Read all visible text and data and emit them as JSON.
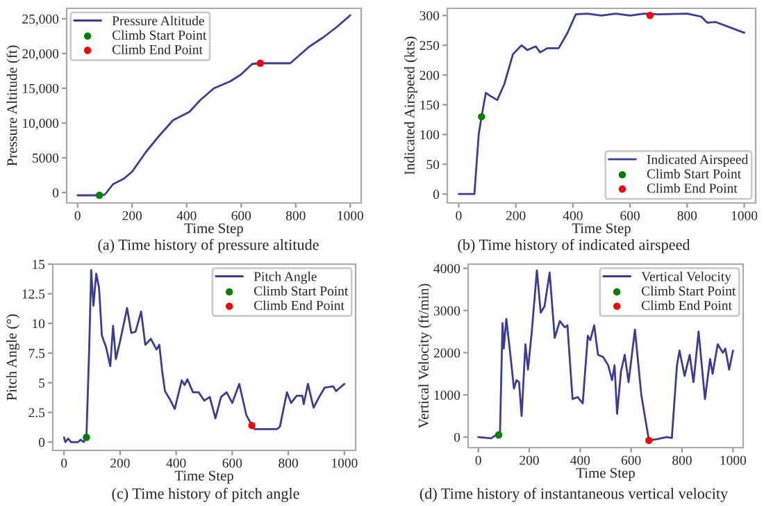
{
  "chart_data": [
    {
      "type": "line",
      "xlabel": "Time Step",
      "ylabel": "Pressure Altitude (ft)",
      "annotations": [
        "(a) Time history of pressure altitude"
      ],
      "xlim": [
        -40,
        1040
      ],
      "xticks": [
        0,
        200,
        400,
        600,
        800,
        1000
      ],
      "ylim": [
        -1500,
        26500
      ],
      "yticks": [
        {
          "value": 0,
          "label": "0"
        },
        {
          "value": 5000,
          "label": "5000"
        },
        {
          "value": 10000,
          "label": "10,000"
        },
        {
          "value": 15000,
          "label": "15,000"
        },
        {
          "value": 20000,
          "label": "20,000"
        },
        {
          "value": 25000,
          "label": "25,000"
        }
      ],
      "grid": false,
      "legend": "top left",
      "series": [
        {
          "name": "Pressure Altitude",
          "color": "#3b3b98",
          "marker": "none",
          "x": [
            0,
            80,
            100,
            130,
            170,
            200,
            250,
            300,
            350,
            380,
            410,
            450,
            500,
            560,
            600,
            640,
            670,
            780,
            850,
            900,
            950,
            1000
          ],
          "values": [
            -400,
            -400,
            -300,
            1200,
            2000,
            3000,
            5800,
            8200,
            10400,
            11000,
            11600,
            13300,
            15000,
            16000,
            17000,
            18500,
            18600,
            18600,
            21000,
            22300,
            23800,
            25500
          ]
        },
        {
          "name": "Climb Start Point",
          "type": "scatter",
          "color": "#008000",
          "marker": "circle",
          "x": [
            80
          ],
          "values": [
            -400
          ]
        },
        {
          "name": "Climb End Point",
          "type": "scatter",
          "color": "#ff0000",
          "marker": "circle",
          "x": [
            670
          ],
          "values": [
            18600
          ]
        }
      ]
    },
    {
      "type": "line",
      "xlabel": "Time Step",
      "ylabel": "Indicated Airspeed (kts)",
      "annotations": [
        "(b) Time history of indicated airspeed"
      ],
      "xlim": [
        -40,
        1040
      ],
      "xticks": [
        0,
        200,
        400,
        600,
        800,
        1000
      ],
      "ylim": [
        -15,
        312
      ],
      "yticks": [
        0,
        50,
        100,
        150,
        200,
        250,
        300
      ],
      "grid": false,
      "legend": "bottom right",
      "series": [
        {
          "name": "Indicated Airspeed",
          "color": "#3b3b98",
          "marker": "none",
          "x": [
            0,
            55,
            70,
            80,
            95,
            110,
            135,
            160,
            190,
            220,
            240,
            270,
            285,
            310,
            350,
            380,
            410,
            450,
            500,
            550,
            600,
            650,
            700,
            800,
            850,
            870,
            900,
            950,
            1000
          ],
          "values": [
            0,
            0,
            100,
            130,
            170,
            165,
            158,
            185,
            235,
            250,
            242,
            248,
            238,
            245,
            245,
            270,
            302,
            303,
            300,
            303,
            300,
            303,
            302,
            303,
            298,
            288,
            289,
            280,
            271
          ]
        },
        {
          "name": "Climb Start Point",
          "type": "scatter",
          "color": "#008000",
          "marker": "circle",
          "x": [
            80
          ],
          "values": [
            130
          ]
        },
        {
          "name": "Climb End Point",
          "type": "scatter",
          "color": "#ff0000",
          "marker": "circle",
          "x": [
            670
          ],
          "values": [
            300
          ]
        }
      ]
    },
    {
      "type": "line",
      "xlabel": "Time Step",
      "ylabel": "Pitch Angle (°)",
      "annotations": [
        "(c) Time history of pitch angle"
      ],
      "xlim": [
        -40,
        1040
      ],
      "xticks": [
        0,
        200,
        400,
        600,
        800,
        1000
      ],
      "ylim": [
        -0.7,
        15
      ],
      "yticks": [
        0,
        2.5,
        5,
        7.5,
        10,
        12.5,
        15
      ],
      "grid": false,
      "legend": "top right",
      "series": [
        {
          "name": "Pitch Angle",
          "color": "#3b3b98",
          "marker": "none",
          "x": [
            0,
            5,
            15,
            25,
            50,
            60,
            70,
            80,
            90,
            97,
            105,
            115,
            125,
            135,
            150,
            165,
            175,
            185,
            200,
            225,
            240,
            255,
            275,
            290,
            310,
            330,
            340,
            350,
            360,
            380,
            395,
            420,
            430,
            440,
            460,
            480,
            500,
            520,
            540,
            560,
            580,
            600,
            625,
            650,
            670,
            680,
            720,
            760,
            770,
            795,
            810,
            830,
            850,
            855,
            870,
            890,
            910,
            930,
            960,
            970,
            985,
            1000
          ],
          "values": [
            0.4,
            0,
            0.3,
            0,
            0,
            0.2,
            0,
            0.4,
            8,
            14.5,
            11.5,
            14.2,
            13,
            9,
            8,
            6.4,
            9.8,
            7,
            8.5,
            11.3,
            9.2,
            9.3,
            11,
            8.2,
            8.7,
            7.8,
            8.2,
            6,
            4.3,
            3.5,
            2.8,
            5.2,
            4.8,
            5.3,
            4.2,
            4.2,
            3.5,
            3.8,
            2,
            3.8,
            4.2,
            3.3,
            4.9,
            2.3,
            1.4,
            1.1,
            1.1,
            1.1,
            1.3,
            4.2,
            3.3,
            3.9,
            3.9,
            3.2,
            4.9,
            2.9,
            3.8,
            4.6,
            4.7,
            4.3,
            4.6,
            4.9
          ]
        },
        {
          "name": "Climb Start Point",
          "type": "scatter",
          "color": "#008000",
          "marker": "circle",
          "x": [
            80
          ],
          "values": [
            0.4
          ]
        },
        {
          "name": "Climb End Point",
          "type": "scatter",
          "color": "#ff0000",
          "marker": "circle",
          "x": [
            670
          ],
          "values": [
            1.4
          ]
        }
      ]
    },
    {
      "type": "line",
      "xlabel": "Time Step",
      "ylabel": "Vertical Velocity (ft/min)",
      "annotations": [
        "(d) Time history of instantaneous vertical velocity"
      ],
      "xlim": [
        -40,
        1040
      ],
      "xticks": [
        0,
        200,
        400,
        600,
        800,
        1000
      ],
      "ylim": [
        -250,
        4100
      ],
      "yticks": [
        0,
        1000,
        2000,
        3000,
        4000
      ],
      "grid": false,
      "legend": "top right",
      "series": [
        {
          "name": "Vertical Velocity",
          "color": "#3b3b98",
          "marker": "none",
          "x": [
            0,
            50,
            70,
            85,
            95,
            100,
            110,
            125,
            140,
            150,
            160,
            170,
            185,
            195,
            210,
            230,
            245,
            260,
            280,
            300,
            320,
            340,
            350,
            370,
            390,
            410,
            430,
            440,
            455,
            470,
            490,
            510,
            525,
            535,
            545,
            560,
            575,
            590,
            615,
            640,
            670,
            700,
            740,
            760,
            780,
            790,
            810,
            830,
            845,
            865,
            890,
            910,
            920,
            940,
            960,
            970,
            985,
            1000
          ],
          "values": [
            0,
            -30,
            50,
            50,
            2700,
            2100,
            2800,
            2000,
            1150,
            1350,
            1300,
            500,
            2200,
            1600,
            2500,
            3950,
            2950,
            3100,
            3900,
            2350,
            2750,
            2600,
            2650,
            900,
            950,
            800,
            2400,
            2300,
            2650,
            1950,
            1900,
            1700,
            1350,
            1700,
            550,
            1550,
            1950,
            1300,
            2550,
            1000,
            -80,
            -50,
            0,
            -20,
            1700,
            2050,
            1450,
            1950,
            1300,
            2500,
            900,
            1850,
            1500,
            2200,
            2000,
            2100,
            1600,
            2050
          ]
        },
        {
          "name": "Climb Start Point",
          "type": "scatter",
          "color": "#008000",
          "marker": "circle",
          "x": [
            80
          ],
          "values": [
            50
          ]
        },
        {
          "name": "Climb End Point",
          "type": "scatter",
          "color": "#ff0000",
          "marker": "circle",
          "x": [
            670
          ],
          "values": [
            -80
          ]
        }
      ]
    }
  ]
}
